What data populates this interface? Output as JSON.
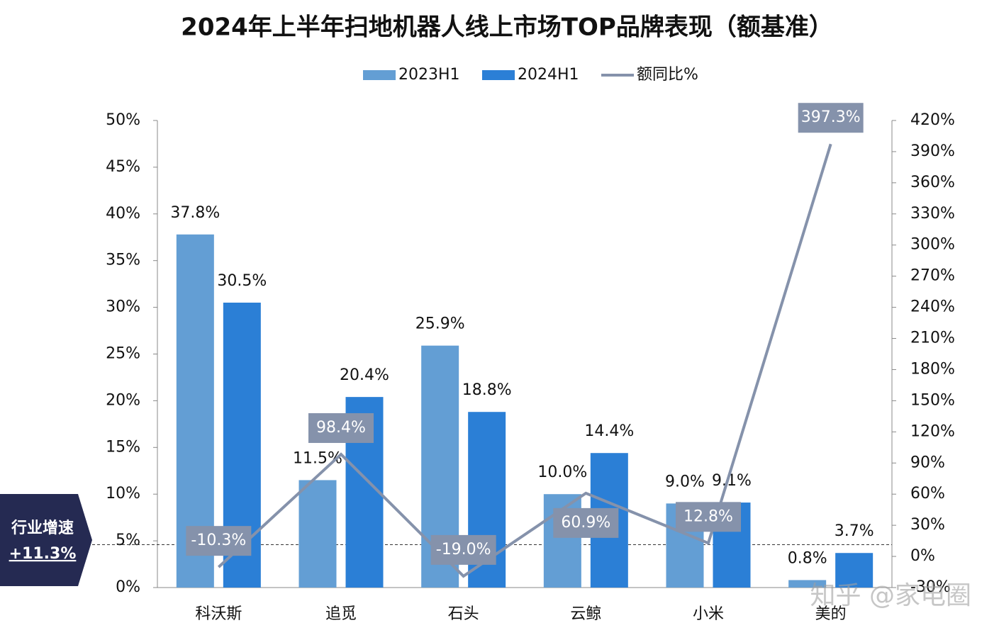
{
  "chart_data": {
    "type": "bar-line",
    "title": "2024年上半年扫地机器人线上市场TOP品牌表现（额基准）",
    "categories": [
      "科沃斯",
      "追觅",
      "石头",
      "云鲸",
      "小米",
      "美的"
    ],
    "series": [
      {
        "name": "2023H1",
        "type": "bar",
        "color": "#639ed4",
        "values": [
          37.8,
          11.5,
          25.9,
          10.0,
          9.0,
          0.8
        ],
        "value_labels": [
          "37.8%",
          "11.5%",
          "25.9%",
          "10.0%",
          "9.0%",
          "0.8%"
        ]
      },
      {
        "name": "2024H1",
        "type": "bar",
        "color": "#2b7fd6",
        "values": [
          30.5,
          20.4,
          18.8,
          14.4,
          9.1,
          3.7
        ],
        "value_labels": [
          "30.5%",
          "20.4%",
          "18.8%",
          "14.4%",
          "9.1%",
          "3.7%"
        ]
      },
      {
        "name": "额同比%",
        "type": "line",
        "axis": "y2",
        "color": "#8592ab",
        "values": [
          -10.3,
          98.4,
          -19.0,
          60.9,
          12.8,
          397.3
        ],
        "value_labels": [
          "-10.3%",
          "98.4%",
          "-19.0%",
          "60.9%",
          "12.8%",
          "397.3%"
        ]
      }
    ],
    "ylim": [
      0,
      50
    ],
    "yticks": [
      {
        "value": 0,
        "label": "0%"
      },
      {
        "value": 5,
        "label": "5%"
      },
      {
        "value": 10,
        "label": "10%"
      },
      {
        "value": 15,
        "label": "15%"
      },
      {
        "value": 20,
        "label": "20%"
      },
      {
        "value": 25,
        "label": "25%"
      },
      {
        "value": 30,
        "label": "30%"
      },
      {
        "value": 35,
        "label": "35%"
      },
      {
        "value": 40,
        "label": "40%"
      },
      {
        "value": 45,
        "label": "45%"
      },
      {
        "value": 50,
        "label": "50%"
      }
    ],
    "y2lim": [
      -30,
      420
    ],
    "y2ticks": [
      {
        "value": -30,
        "label": "-30%"
      },
      {
        "value": 0,
        "label": "0%"
      },
      {
        "value": 30,
        "label": "30%"
      },
      {
        "value": 60,
        "label": "60%"
      },
      {
        "value": 90,
        "label": "90%"
      },
      {
        "value": 120,
        "label": "120%"
      },
      {
        "value": 150,
        "label": "150%"
      },
      {
        "value": 180,
        "label": "180%"
      },
      {
        "value": 210,
        "label": "210%"
      },
      {
        "value": 240,
        "label": "240%"
      },
      {
        "value": 270,
        "label": "270%"
      },
      {
        "value": 300,
        "label": "300%"
      },
      {
        "value": 330,
        "label": "330%"
      },
      {
        "value": 360,
        "label": "360%"
      },
      {
        "value": 390,
        "label": "390%"
      },
      {
        "value": 420,
        "label": "420%"
      }
    ],
    "reference": {
      "label": "行业增速",
      "value": 11.3,
      "value_label": "+11.3%",
      "axis": "y2"
    },
    "watermark": "知乎 @家电圈"
  }
}
